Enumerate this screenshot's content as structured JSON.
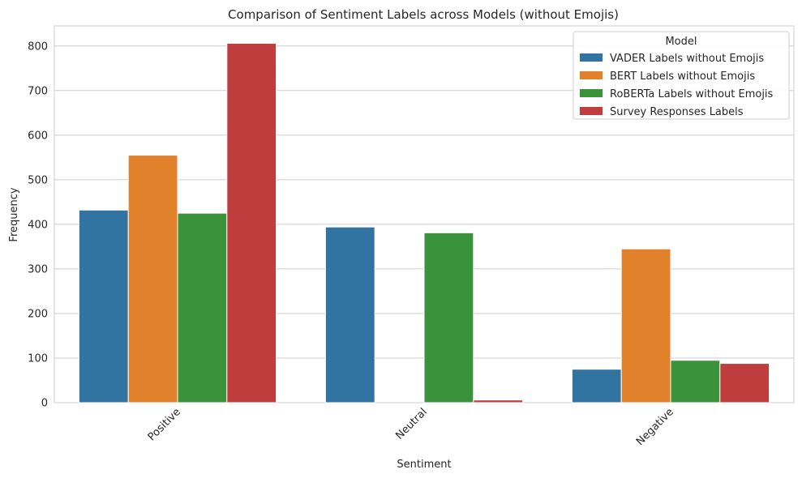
{
  "chart_data": {
    "type": "bar",
    "title": "Comparison of Sentiment Labels across Models (without Emojis)",
    "xlabel": "Sentiment",
    "ylabel": "Frequency",
    "categories": [
      "Positive",
      "Neutral",
      "Negative"
    ],
    "ylim": [
      0,
      845
    ],
    "yticks": [
      0,
      100,
      200,
      300,
      400,
      500,
      600,
      700,
      800
    ],
    "grid": true,
    "legend": {
      "title": "Model",
      "placement": "top-right"
    },
    "series": [
      {
        "name": "VADER Labels without Emojis",
        "color": "#3274a1",
        "values": [
          432,
          394,
          75
        ]
      },
      {
        "name": "BERT Labels without Emojis",
        "color": "#e1812c",
        "values": [
          555,
          0,
          345
        ]
      },
      {
        "name": "RoBERTa Labels without Emojis",
        "color": "#3a923a",
        "values": [
          425,
          381,
          95
        ]
      },
      {
        "name": "Survey Responses Labels",
        "color": "#c03d3e",
        "values": [
          806,
          6,
          88
        ]
      }
    ]
  }
}
